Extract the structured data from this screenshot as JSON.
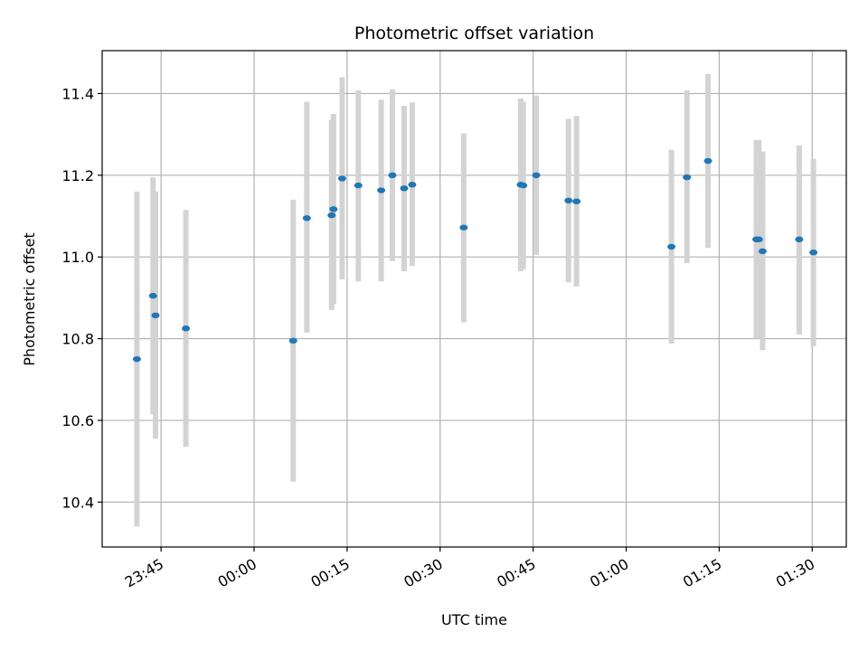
{
  "chart_data": {
    "type": "scatter",
    "title": "Photometric offset variation",
    "xlabel": "UTC time",
    "ylabel": "Photometric offset",
    "x_unit": "minutes relative to 00:00 UTC",
    "xlim": [
      -24.5,
      95.5
    ],
    "ylim": [
      10.29,
      11.505
    ],
    "x_ticks": [
      {
        "value": -15,
        "label": "23:45"
      },
      {
        "value": 0,
        "label": "00:00"
      },
      {
        "value": 15,
        "label": "00:15"
      },
      {
        "value": 30,
        "label": "00:30"
      },
      {
        "value": 45,
        "label": "00:45"
      },
      {
        "value": 60,
        "label": "01:00"
      },
      {
        "value": 75,
        "label": "01:15"
      },
      {
        "value": 90,
        "label": "01:30"
      }
    ],
    "y_ticks": [
      {
        "value": 10.4,
        "label": "10.4"
      },
      {
        "value": 10.6,
        "label": "10.6"
      },
      {
        "value": 10.8,
        "label": "10.8"
      },
      {
        "value": 11.0,
        "label": "11.0"
      },
      {
        "value": 11.2,
        "label": "11.2"
      },
      {
        "value": 11.4,
        "label": "11.4"
      }
    ],
    "grid": true,
    "colors": {
      "marker": "#1f77b4",
      "errorbar": "#d3d3d3",
      "grid": "#b0b0b0"
    },
    "points": [
      {
        "x": -18.9,
        "y": 10.75,
        "lo": 10.34,
        "hi": 11.16
      },
      {
        "x": -16.3,
        "y": 10.905,
        "lo": 10.615,
        "hi": 11.195
      },
      {
        "x": -15.9,
        "y": 10.857,
        "lo": 10.555,
        "hi": 11.16
      },
      {
        "x": -11.0,
        "y": 10.825,
        "lo": 10.535,
        "hi": 11.115
      },
      {
        "x": 6.3,
        "y": 10.795,
        "lo": 10.45,
        "hi": 11.14
      },
      {
        "x": 8.5,
        "y": 11.095,
        "lo": 10.815,
        "hi": 11.38
      },
      {
        "x": 12.5,
        "y": 11.102,
        "lo": 10.87,
        "hi": 11.335
      },
      {
        "x": 12.8,
        "y": 11.117,
        "lo": 10.885,
        "hi": 11.35
      },
      {
        "x": 14.2,
        "y": 11.192,
        "lo": 10.945,
        "hi": 11.44
      },
      {
        "x": 16.8,
        "y": 11.175,
        "lo": 10.94,
        "hi": 11.408
      },
      {
        "x": 20.5,
        "y": 11.163,
        "lo": 10.94,
        "hi": 11.385
      },
      {
        "x": 22.3,
        "y": 11.2,
        "lo": 10.99,
        "hi": 11.41
      },
      {
        "x": 24.2,
        "y": 11.168,
        "lo": 10.965,
        "hi": 11.37
      },
      {
        "x": 25.5,
        "y": 11.177,
        "lo": 10.978,
        "hi": 11.378
      },
      {
        "x": 33.8,
        "y": 11.072,
        "lo": 10.84,
        "hi": 11.302
      },
      {
        "x": 43.0,
        "y": 11.177,
        "lo": 10.965,
        "hi": 11.388
      },
      {
        "x": 43.4,
        "y": 11.175,
        "lo": 10.97,
        "hi": 11.38
      },
      {
        "x": 45.5,
        "y": 11.2,
        "lo": 11.005,
        "hi": 11.395
      },
      {
        "x": 50.7,
        "y": 11.138,
        "lo": 10.938,
        "hi": 11.338
      },
      {
        "x": 52.0,
        "y": 11.136,
        "lo": 10.928,
        "hi": 11.345
      },
      {
        "x": 67.3,
        "y": 11.025,
        "lo": 10.788,
        "hi": 11.262
      },
      {
        "x": 69.8,
        "y": 11.195,
        "lo": 10.985,
        "hi": 11.408
      },
      {
        "x": 73.2,
        "y": 11.235,
        "lo": 11.022,
        "hi": 11.448
      },
      {
        "x": 81.0,
        "y": 11.043,
        "lo": 10.8,
        "hi": 11.286
      },
      {
        "x": 81.4,
        "y": 11.043,
        "lo": 10.8,
        "hi": 11.286
      },
      {
        "x": 82.0,
        "y": 11.014,
        "lo": 10.772,
        "hi": 11.258
      },
      {
        "x": 87.9,
        "y": 11.043,
        "lo": 10.81,
        "hi": 11.273
      },
      {
        "x": 90.2,
        "y": 11.011,
        "lo": 10.782,
        "hi": 11.24
      }
    ]
  }
}
